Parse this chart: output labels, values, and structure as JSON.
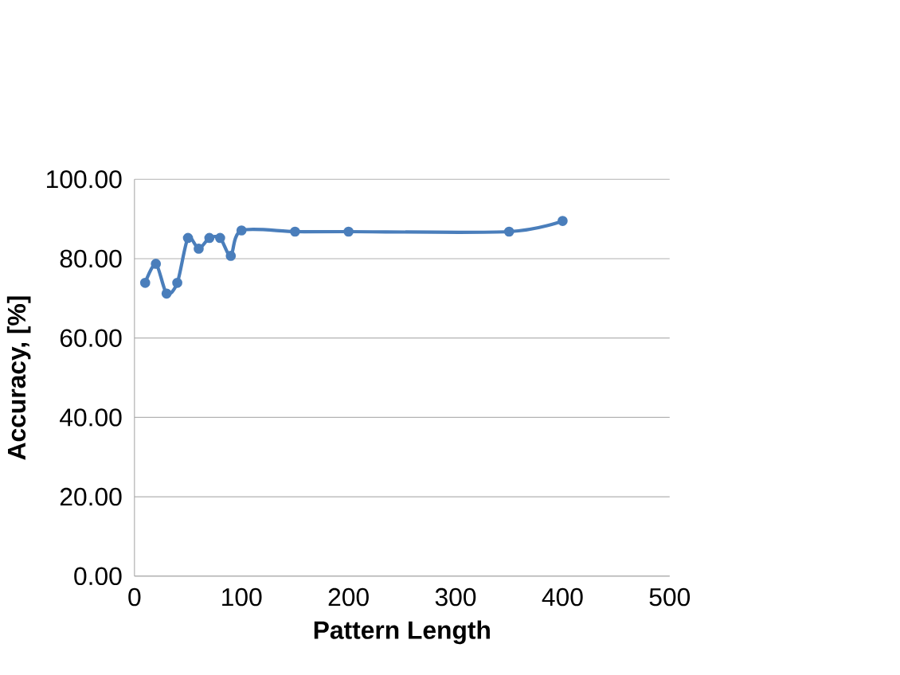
{
  "chart_data": {
    "type": "line",
    "xlabel": "Pattern Length",
    "ylabel": "Accuracy, [%]",
    "x": [
      10,
      20,
      30,
      40,
      50,
      60,
      70,
      80,
      90,
      100,
      150,
      200,
      350,
      400
    ],
    "values": [
      73.9,
      78.7,
      71.2,
      73.9,
      85.2,
      82.5,
      85.2,
      85.2,
      80.7,
      87.1,
      86.8,
      86.8,
      86.8,
      89.5
    ],
    "color": "#4a7ebb",
    "marker": "circle",
    "grid": "y",
    "xlim": [
      0,
      500
    ],
    "xticks": [
      0,
      100,
      200,
      300,
      400,
      500
    ],
    "ylim": [
      0,
      100
    ],
    "yticks": [
      {
        "value": 0,
        "label": "0.00"
      },
      {
        "value": 20,
        "label": "20.00"
      },
      {
        "value": 40,
        "label": "40.00"
      },
      {
        "value": 60,
        "label": "60.00"
      },
      {
        "value": 80,
        "label": "80.00"
      },
      {
        "value": 100,
        "label": "100.00"
      }
    ]
  }
}
